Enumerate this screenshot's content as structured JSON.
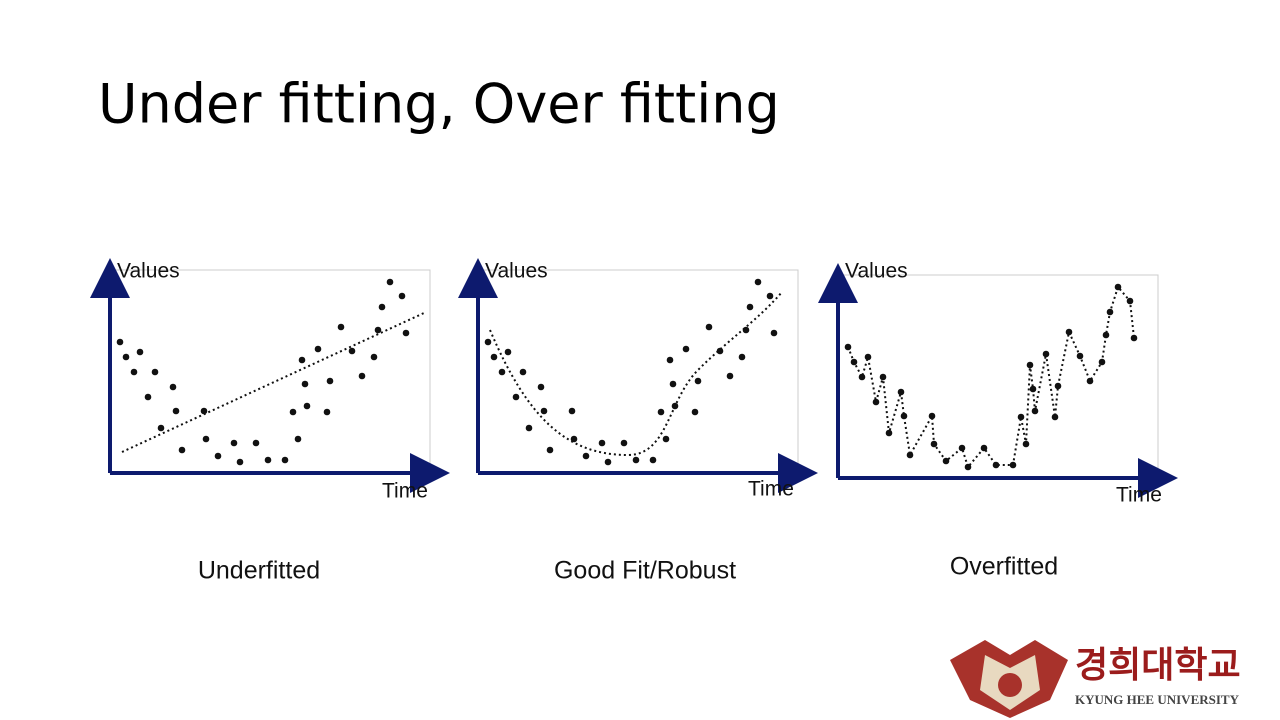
{
  "header": {
    "title": "Under fitting, Over fitting"
  },
  "panels": [
    {
      "y_axis": "Values",
      "x_axis": "Time",
      "caption": "Underfitted"
    },
    {
      "y_axis": "Values",
      "x_axis": "Time",
      "caption": "Good Fit/Robust"
    },
    {
      "y_axis": "Values",
      "x_axis": "Time",
      "caption": "Overfitted"
    }
  ],
  "logo": {
    "name": "경희대학교",
    "subtitle": "KYUNG HEE UNIVERSITY"
  }
}
